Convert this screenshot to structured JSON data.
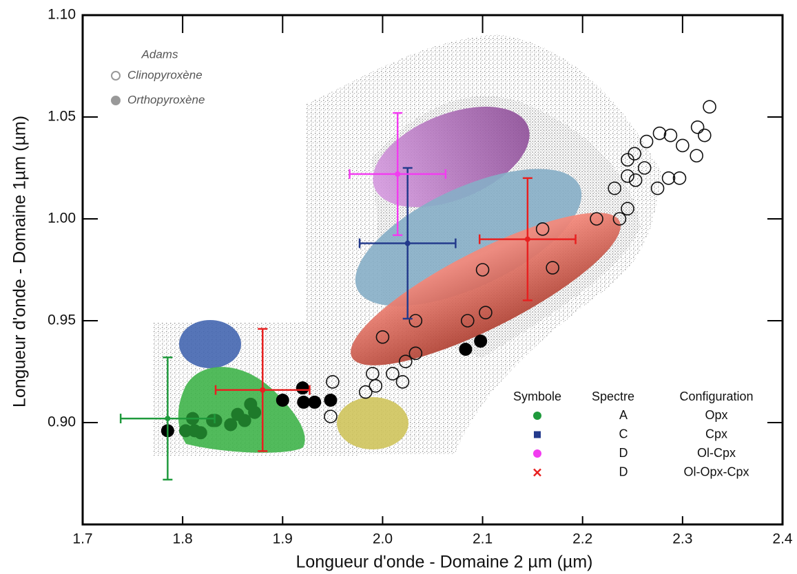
{
  "chart_data": {
    "type": "scatter",
    "x_label": "Longueur d'onde - Domaine 2 µm (µm)",
    "y_label": "Longueur d'onde - Domaine 1µm (µm)",
    "xlim": [
      1.7,
      2.4
    ],
    "xticks": [
      1.7,
      1.8,
      1.9,
      {
        "value": 2,
        "label": "2.0"
      },
      2.1,
      2.2,
      2.3,
      2.4
    ],
    "ylim": [
      0.85,
      1.1
    ],
    "yticks": [
      {
        "value": 0.9,
        "label": "0.90"
      },
      0.95,
      {
        "value": 1,
        "label": "1.00"
      },
      1.05,
      {
        "value": 1.1,
        "label": "1.10"
      }
    ],
    "legend_title": "Adams",
    "series": [
      {
        "name": "Clinopyroxène",
        "color": "#111111",
        "legend_color": "#999999",
        "marker": "open",
        "x": [
          2.327,
          2.315,
          2.322,
          2.314,
          2.3,
          2.288,
          2.277,
          2.264,
          2.252,
          2.245,
          2.262,
          2.245,
          2.253,
          2.232,
          2.275,
          2.286,
          2.297,
          2.245,
          2.237,
          2.214,
          2.16,
          2.17,
          2.1,
          2.103,
          2.085,
          2.033,
          2.0,
          2.033,
          2.023,
          1.99,
          2.01,
          2.02,
          1.993,
          1.983,
          1.95,
          1.948
        ],
        "values": [
          1.055,
          1.045,
          1.041,
          1.031,
          1.036,
          1.041,
          1.042,
          1.038,
          1.032,
          1.029,
          1.025,
          1.021,
          1.019,
          1.015,
          1.015,
          1.02,
          1.02,
          1.005,
          1.0,
          1.0,
          0.995,
          0.976,
          0.975,
          0.954,
          0.95,
          0.95,
          0.942,
          0.934,
          0.93,
          0.924,
          0.924,
          0.92,
          0.918,
          0.915,
          0.92,
          0.903
        ]
      },
      {
        "name": "Orthopyroxène",
        "color": "#000000",
        "legend_color": "#999999",
        "marker": "filled",
        "x": [
          1.785,
          1.9,
          1.92,
          1.921,
          1.932,
          1.948,
          2.083,
          2.098
        ],
        "values": [
          0.896,
          0.911,
          0.917,
          0.91,
          0.91,
          0.911,
          0.936,
          0.94
        ]
      },
      {
        "color": "#1e7a2a",
        "marker": "filled",
        "x": [
          1.803,
          1.81,
          1.812,
          1.818,
          1.83,
          1.833,
          1.848,
          1.855,
          1.862,
          1.868,
          1.872
        ],
        "values": [
          0.896,
          0.902,
          0.896,
          0.895,
          0.901,
          0.901,
          0.899,
          0.904,
          0.901,
          0.909,
          0.905
        ]
      }
    ],
    "key_headers": [
      "Symbole",
      "Spectre",
      "Configuration"
    ],
    "error_points": [
      {
        "spectre": "A",
        "configuration": "Opx",
        "color": "#1f9a3c",
        "marker": "circle",
        "x": 1.785,
        "y": 0.902,
        "xerr": 0.047,
        "yerr": 0.03
      },
      {
        "spectre": "C",
        "configuration": "Cpx",
        "color": "#233a8c",
        "marker": "square",
        "x": 2.025,
        "y": 0.988,
        "xerr": 0.048,
        "yerr": 0.037
      },
      {
        "spectre": "D",
        "configuration": "Ol-Cpx",
        "color": "#f23cf0",
        "marker": "circle",
        "x": 2.015,
        "y": 1.022,
        "xerr": 0.048,
        "yerr": 0.03
      },
      {
        "spectre": "D",
        "configuration": "Ol-Opx-Cpx",
        "color": "#e82020",
        "marker": "x",
        "x": 2.145,
        "y": 0.99,
        "xerr": 0.048,
        "yerr": 0.03
      }
    ],
    "extra_error_points": [
      {
        "color": "#e82020",
        "x": 1.88,
        "y": 0.916,
        "xerr": 0.047,
        "yerr": 0.03
      }
    ]
  }
}
